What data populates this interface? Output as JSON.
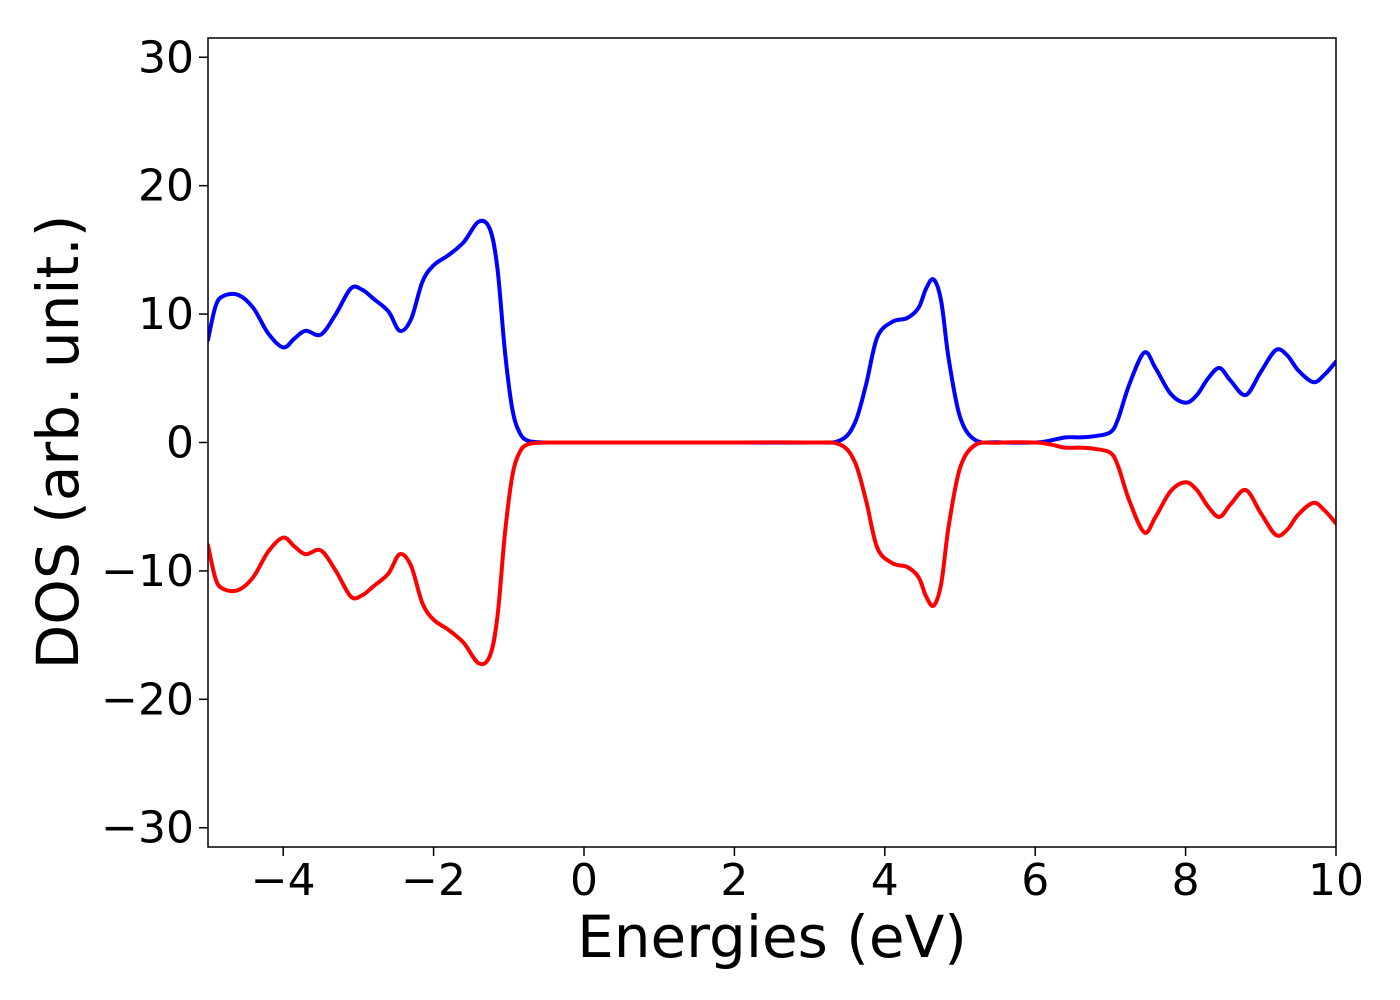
{
  "chart_data": {
    "type": "line",
    "title": "",
    "xlabel": "Energies (eV)",
    "ylabel": "DOS (arb. unit.)",
    "xlim": [
      -5,
      10
    ],
    "ylim": [
      -31.5,
      31.5
    ],
    "xticks": [
      -4,
      -2,
      0,
      2,
      4,
      6,
      8,
      10
    ],
    "xtick_labels": [
      "−4",
      "−2",
      "0",
      "2",
      "4",
      "6",
      "8",
      "10"
    ],
    "yticks": [
      30,
      20,
      10,
      0,
      -10,
      -20,
      -30
    ],
    "ytick_labels": [
      "30",
      "20",
      "10",
      "0",
      "−10",
      "−20",
      "−30"
    ],
    "grid": false,
    "legend": "none",
    "series": [
      {
        "color": "#0000ff",
        "x": [
          -5.0,
          -4.9,
          -4.8,
          -4.6,
          -4.4,
          -4.2,
          -4.0,
          -3.85,
          -3.7,
          -3.5,
          -3.3,
          -3.1,
          -2.95,
          -2.8,
          -2.6,
          -2.45,
          -2.3,
          -2.15,
          -2.0,
          -1.8,
          -1.6,
          -1.4,
          -1.25,
          -1.15,
          -1.05,
          -0.95,
          -0.85,
          -0.75,
          -0.6,
          -0.4,
          0.0,
          1.0,
          2.0,
          3.0,
          3.4,
          3.6,
          3.75,
          3.9,
          4.1,
          4.3,
          4.45,
          4.55,
          4.65,
          4.75,
          4.85,
          5.0,
          5.2,
          5.5,
          6.0,
          6.2,
          6.4,
          6.6,
          6.8,
          7.0,
          7.1,
          7.25,
          7.45,
          7.6,
          7.8,
          8.0,
          8.15,
          8.3,
          8.45,
          8.6,
          8.8,
          9.0,
          9.2,
          9.35,
          9.5,
          9.7,
          9.85,
          10.0
        ],
        "values": [
          8.0,
          10.6,
          11.4,
          11.5,
          10.5,
          8.5,
          7.4,
          8.1,
          8.7,
          8.4,
          10.0,
          12.0,
          11.9,
          11.2,
          10.2,
          8.7,
          9.6,
          12.5,
          13.8,
          14.6,
          15.6,
          17.2,
          16.6,
          13.5,
          7.0,
          2.5,
          0.7,
          0.15,
          0.02,
          0.0,
          0.0,
          0.0,
          0.0,
          0.0,
          0.15,
          1.5,
          4.5,
          8.2,
          9.4,
          9.7,
          10.5,
          12.0,
          12.7,
          11.0,
          6.5,
          2.0,
          0.2,
          0.02,
          0.0,
          0.15,
          0.4,
          0.4,
          0.5,
          0.8,
          1.8,
          4.5,
          7.0,
          5.8,
          3.8,
          3.1,
          3.7,
          5.0,
          5.8,
          4.8,
          3.7,
          5.5,
          7.2,
          6.8,
          5.6,
          4.7,
          5.3,
          6.3
        ]
      },
      {
        "color": "#ff0000",
        "x": [
          -5.0,
          -4.9,
          -4.8,
          -4.6,
          -4.4,
          -4.2,
          -4.0,
          -3.85,
          -3.7,
          -3.5,
          -3.3,
          -3.1,
          -2.95,
          -2.8,
          -2.6,
          -2.45,
          -2.3,
          -2.15,
          -2.0,
          -1.8,
          -1.6,
          -1.4,
          -1.25,
          -1.15,
          -1.05,
          -0.95,
          -0.85,
          -0.75,
          -0.6,
          -0.4,
          0.0,
          1.0,
          2.0,
          3.0,
          3.4,
          3.6,
          3.75,
          3.9,
          4.1,
          4.3,
          4.45,
          4.55,
          4.65,
          4.75,
          4.85,
          5.0,
          5.2,
          5.5,
          6.0,
          6.2,
          6.4,
          6.6,
          6.8,
          7.0,
          7.1,
          7.25,
          7.45,
          7.6,
          7.8,
          8.0,
          8.15,
          8.3,
          8.45,
          8.6,
          8.8,
          9.0,
          9.2,
          9.35,
          9.5,
          9.7,
          9.85,
          10.0
        ],
        "values": [
          -8.0,
          -10.6,
          -11.4,
          -11.5,
          -10.5,
          -8.5,
          -7.4,
          -8.1,
          -8.7,
          -8.4,
          -10.0,
          -12.0,
          -11.9,
          -11.2,
          -10.2,
          -8.7,
          -9.6,
          -12.5,
          -13.8,
          -14.6,
          -15.6,
          -17.2,
          -16.6,
          -13.5,
          -7.0,
          -2.5,
          -0.7,
          -0.15,
          -0.02,
          0.0,
          0.0,
          0.0,
          0.0,
          0.0,
          -0.15,
          -1.5,
          -4.5,
          -8.2,
          -9.4,
          -9.7,
          -10.5,
          -12.0,
          -12.7,
          -11.0,
          -6.5,
          -2.0,
          -0.2,
          -0.02,
          0.0,
          -0.15,
          -0.4,
          -0.4,
          -0.5,
          -0.8,
          -1.8,
          -4.5,
          -7.0,
          -5.8,
          -3.8,
          -3.1,
          -3.7,
          -5.0,
          -5.8,
          -4.8,
          -3.7,
          -5.5,
          -7.2,
          -6.8,
          -5.6,
          -4.7,
          -5.3,
          -6.3
        ]
      }
    ]
  }
}
